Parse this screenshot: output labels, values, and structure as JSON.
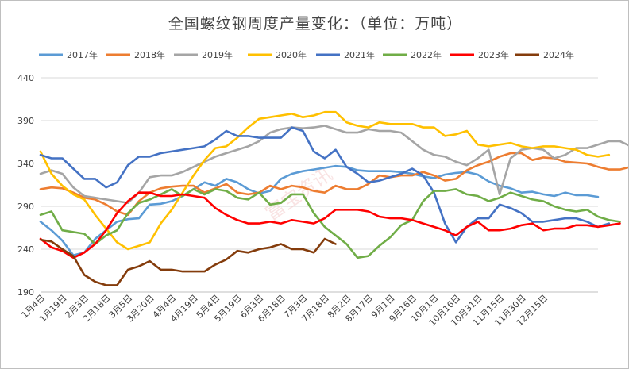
{
  "title": "全国螺纹钢周度产量变化：（单位：万吨）",
  "watermark": "富宝资讯",
  "chart_data": {
    "type": "line",
    "title": "全国螺纹钢周度产量变化：（单位：万吨）",
    "ylim": [
      190,
      440
    ],
    "yticks": [
      190,
      240,
      290,
      340,
      390,
      440
    ],
    "grid": "horizontal",
    "legend_position": "top",
    "x_tick_labels": [
      "1月4日",
      "1月19日",
      "2月3日",
      "2月18日",
      "3月5日",
      "3月20日",
      "4月4日",
      "4月19日",
      "5月4日",
      "5月19日",
      "6月3日",
      "6月18日",
      "7月3日",
      "7月18日",
      "8月2日",
      "8月17日",
      "9月1日",
      "9月16日",
      "10月1日",
      "10月16日",
      "10月31日",
      "11月15日",
      "11月30日",
      "12月15日"
    ],
    "series": [
      {
        "name": "2017年",
        "color": "#5b9bd5",
        "values": [
          272,
          262,
          250,
          233,
          236,
          252,
          262,
          272,
          275,
          276,
          292,
          293,
          296,
          302,
          310,
          318,
          314,
          322,
          318,
          310,
          305,
          308,
          322,
          328,
          331,
          333,
          335,
          337,
          336,
          332,
          331,
          331,
          331,
          330,
          328,
          325,
          323,
          327,
          329,
          330,
          327,
          319,
          314,
          311,
          306,
          307,
          304,
          302,
          306,
          303,
          303,
          301
        ]
      },
      {
        "name": "2018年",
        "color": "#ed7d31",
        "values": [
          310,
          312,
          311,
          306,
          300,
          298,
          292,
          284,
          280,
          296,
          306,
          311,
          313,
          314,
          314,
          306,
          311,
          316,
          306,
          304,
          306,
          314,
          310,
          314,
          312,
          308,
          306,
          314,
          310,
          310,
          316,
          326,
          324,
          326,
          326,
          330,
          326,
          320,
          322,
          332,
          338,
          342,
          348,
          352,
          352,
          344,
          347,
          346,
          342,
          341,
          340,
          336,
          333,
          333,
          336
        ]
      },
      {
        "name": "2019年",
        "color": "#a5a5a5",
        "values": [
          328,
          332,
          328,
          312,
          302,
          300,
          298,
          296,
          294,
          306,
          324,
          326,
          326,
          330,
          336,
          342,
          348,
          352,
          356,
          360,
          366,
          376,
          380,
          382,
          381,
          382,
          384,
          380,
          376,
          376,
          380,
          378,
          378,
          376,
          366,
          356,
          350,
          348,
          342,
          338,
          346,
          356,
          304,
          346,
          356,
          358,
          356,
          346,
          350,
          358,
          358,
          362,
          366,
          366,
          360,
          350
        ]
      },
      {
        "name": "2020年",
        "color": "#ffc000",
        "values": [
          354,
          328,
          314,
          304,
          298,
          280,
          264,
          248,
          240,
          244,
          248,
          270,
          286,
          306,
          326,
          344,
          358,
          360,
          370,
          382,
          392,
          394,
          396,
          398,
          394,
          396,
          400,
          400,
          388,
          384,
          382,
          388,
          386,
          386,
          386,
          382,
          382,
          372,
          374,
          378,
          362,
          360,
          362,
          364,
          360,
          358,
          360,
          360,
          358,
          356,
          350,
          348,
          350
        ]
      },
      {
        "name": "2021年",
        "color": "#4472c4",
        "values": [
          350,
          346,
          346,
          334,
          322,
          322,
          312,
          318,
          338,
          348,
          348,
          352,
          354,
          356,
          358,
          360,
          368,
          378,
          372,
          372,
          370,
          370,
          370,
          382,
          378,
          354,
          346,
          356,
          336,
          328,
          318,
          320,
          324,
          328,
          334,
          326,
          306,
          270,
          248,
          266,
          276,
          276,
          292,
          288,
          282,
          272,
          272,
          274,
          276,
          276,
          272,
          266,
          270
        ]
      },
      {
        "name": "2022年",
        "color": "#70ad47",
        "values": [
          280,
          284,
          262,
          260,
          258,
          246,
          256,
          262,
          282,
          294,
          298,
          304,
          310,
          302,
          310,
          304,
          310,
          308,
          300,
          298,
          306,
          292,
          294,
          304,
          304,
          282,
          266,
          256,
          246,
          230,
          232,
          244,
          254,
          268,
          274,
          296,
          308,
          308,
          310,
          304,
          302,
          296,
          300,
          306,
          302,
          298,
          296,
          290,
          286,
          284,
          286,
          278,
          274,
          272
        ]
      },
      {
        "name": "2023年",
        "color": "#ff0000",
        "values": [
          252,
          242,
          238,
          230,
          236,
          246,
          262,
          282,
          296,
          306,
          306,
          302,
          302,
          304,
          302,
          300,
          288,
          280,
          274,
          270,
          270,
          272,
          270,
          274,
          272,
          270,
          276,
          286,
          286,
          286,
          284,
          278,
          276,
          276,
          274,
          270,
          266,
          262,
          256,
          266,
          272,
          262,
          262,
          264,
          268,
          270,
          262,
          264,
          264,
          268,
          268,
          266,
          268,
          270
        ]
      },
      {
        "name": "2024年",
        "color": "#843c0c",
        "values": [
          251,
          249,
          240,
          232,
          210,
          202,
          198,
          198,
          216,
          220,
          226,
          216,
          216,
          214,
          214,
          214,
          222,
          228,
          238,
          236,
          240,
          242,
          246,
          240,
          240,
          236,
          252,
          246
        ]
      }
    ]
  }
}
